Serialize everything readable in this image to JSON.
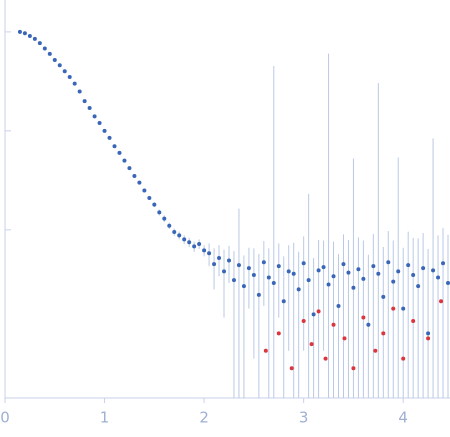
{
  "chart_data": {
    "type": "scatter",
    "log_y": true,
    "xlim": [
      0,
      4.47
    ],
    "xticks": [
      0,
      1,
      2,
      3,
      4
    ],
    "ylim": [
      0.0002,
      2.1
    ],
    "yticks": [
      0.01,
      0.1,
      1
    ],
    "error_color": "#b9c9e6",
    "series": [
      {
        "color": "#3a66b8",
        "x": [
          0.15,
          0.2,
          0.25,
          0.3,
          0.35,
          0.4,
          0.45,
          0.5,
          0.55,
          0.6,
          0.65,
          0.7,
          0.75,
          0.8,
          0.85,
          0.9,
          0.95,
          1.0,
          1.05,
          1.1,
          1.15,
          1.2,
          1.25,
          1.3,
          1.35,
          1.4,
          1.45,
          1.5,
          1.55,
          1.6,
          1.65,
          1.7,
          1.75,
          1.8,
          1.85,
          1.9,
          1.95,
          2.0,
          2.05,
          2.1,
          2.15,
          2.2,
          2.25,
          2.3,
          2.35,
          2.4,
          2.45,
          2.5,
          2.55,
          2.6,
          2.65,
          2.7,
          2.75,
          2.8,
          2.85,
          2.9,
          2.95,
          3.0,
          3.05,
          3.1,
          3.15,
          3.2,
          3.25,
          3.3,
          3.35,
          3.4,
          3.45,
          3.5,
          3.55,
          3.6,
          3.65,
          3.7,
          3.75,
          3.8,
          3.85,
          3.9,
          3.95,
          4.0,
          4.05,
          4.1,
          4.15,
          4.2,
          4.25,
          4.3,
          4.35,
          4.4,
          4.45
        ],
        "values": [
          1.0,
          0.97,
          0.91,
          0.85,
          0.77,
          0.68,
          0.6,
          0.52,
          0.46,
          0.4,
          0.35,
          0.3,
          0.25,
          0.2,
          0.17,
          0.14,
          0.12,
          0.1,
          0.085,
          0.07,
          0.06,
          0.05,
          0.042,
          0.035,
          0.03,
          0.025,
          0.021,
          0.018,
          0.015,
          0.013,
          0.011,
          0.0095,
          0.0088,
          0.008,
          0.0075,
          0.0068,
          0.0072,
          0.0062,
          0.0058,
          0.0045,
          0.0052,
          0.0038,
          0.0049,
          0.0031,
          0.0044,
          0.0027,
          0.0041,
          0.0035,
          0.0022,
          0.0047,
          0.0033,
          0.0029,
          0.0043,
          0.0019,
          0.0038,
          0.0036,
          0.0025,
          0.0046,
          0.0031,
          0.0014,
          0.0039,
          0.0042,
          0.0028,
          0.0034,
          0.0017,
          0.0045,
          0.0037,
          0.0026,
          0.004,
          0.0032,
          0.0011,
          0.0043,
          0.0036,
          0.0021,
          0.0047,
          0.003,
          0.0038,
          0.0016,
          0.0044,
          0.0035,
          0.0027,
          0.0041,
          0.0009,
          0.0039,
          0.0033,
          0.0046,
          0.0029
        ],
        "errors": [
          0.005,
          0.005,
          0.005,
          0.005,
          0.005,
          0.005,
          0.005,
          0.005,
          0.005,
          0.005,
          0.002,
          0.002,
          0.002,
          0.002,
          0.002,
          0.002,
          0.002,
          0.002,
          0.002,
          0.002,
          0.001,
          0.001,
          0.001,
          0.001,
          0.001,
          0.001,
          0.001,
          0.001,
          0.001,
          0.001,
          0.0008,
          0.0008,
          0.0008,
          0.0008,
          0.0008,
          0.0008,
          0.0008,
          0.0008,
          0.0015,
          0.002,
          0.0018,
          0.0025,
          0.002,
          0.003,
          0.012,
          0.0028,
          0.0025,
          0.003,
          0.0035,
          0.003,
          0.0032,
          0.45,
          0.003,
          0.0035,
          0.0032,
          0.0038,
          0.0035,
          0.004,
          0.02,
          0.0038,
          0.004,
          0.0036,
          0.6,
          0.0042,
          0.004,
          0.0045,
          0.0042,
          0.05,
          0.0044,
          0.0046,
          0.0045,
          0.0048,
          0.3,
          0.0046,
          0.005,
          0.0048,
          0.05,
          0.005,
          0.0052,
          0.0048,
          0.0055,
          0.0052,
          0.0055,
          0.08,
          0.0055,
          0.0058,
          0.006
        ]
      },
      {
        "color": "#d9363e",
        "x": [
          2.62,
          2.75,
          2.88,
          3.0,
          3.08,
          3.15,
          3.22,
          3.3,
          3.41,
          3.5,
          3.6,
          3.72,
          3.8,
          3.9,
          4.0,
          4.1,
          4.25,
          4.38
        ],
        "values": [
          0.0006,
          0.0009,
          0.0004,
          0.0012,
          0.0007,
          0.0015,
          0.0005,
          0.0011,
          0.0008,
          0.0004,
          0.0013,
          0.0006,
          0.0009,
          0.0016,
          0.0005,
          0.0012,
          0.0008,
          0.0019
        ]
      }
    ]
  }
}
